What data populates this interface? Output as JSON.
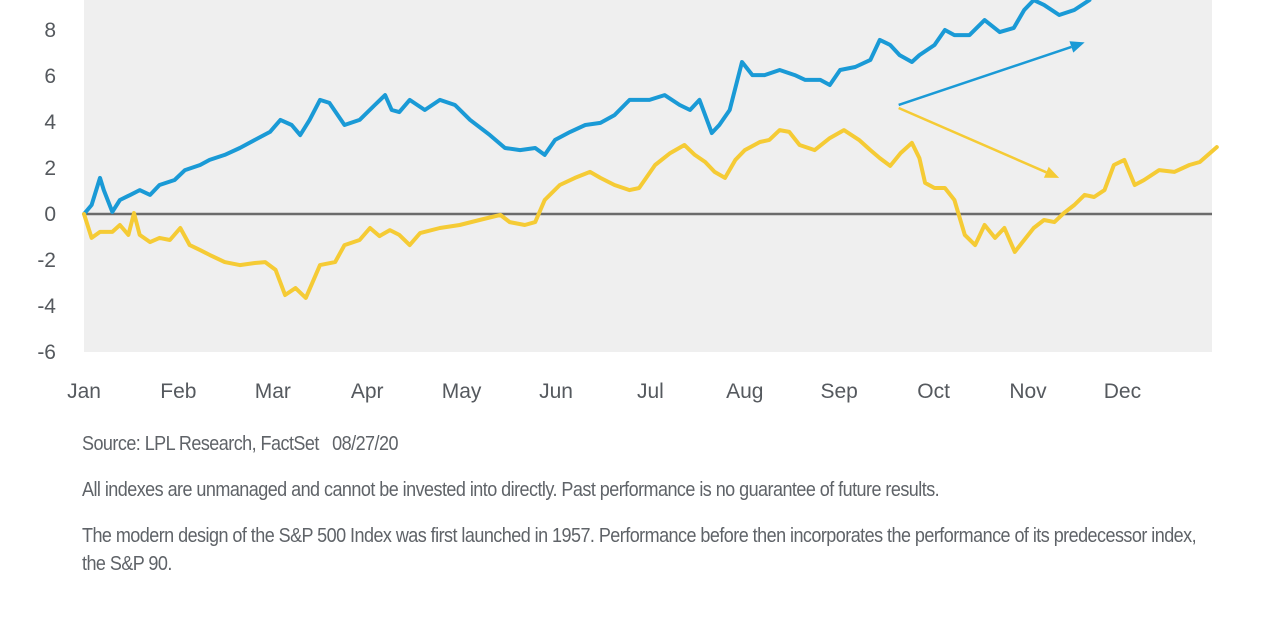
{
  "chart_data": {
    "type": "line",
    "title": "",
    "xlabel": "",
    "ylabel": "",
    "x_tick_labels": [
      "Jan",
      "Feb",
      "Mar",
      "Apr",
      "May",
      "Jun",
      "Jul",
      "Aug",
      "Sep",
      "Oct",
      "Nov",
      "Dec"
    ],
    "y_tick_labels": [
      "8",
      "6",
      "4",
      "2",
      "0",
      "-2",
      "-4",
      "-6"
    ],
    "y_ticks": [
      8,
      6,
      4,
      2,
      0,
      -2,
      -4,
      -6
    ],
    "ylim": [
      -6,
      9.3
    ],
    "xlim": [
      0,
      12
    ],
    "x_units": "months since start of January",
    "grid": false,
    "zero_line": true,
    "legend": "none",
    "colors": {
      "plot_background": "#efefef",
      "zero_line": "#6b6b6b",
      "series_blue": "#1a9ad6",
      "series_yellow": "#f5cb35",
      "tick_text": "#55595e"
    },
    "series": [
      {
        "name": "blue-series",
        "color": "#1a9ad6",
        "x": [
          0,
          0.08,
          0.17,
          0.21,
          0.3,
          0.38,
          0.49,
          0.59,
          0.7,
          0.8,
          0.96,
          1.07,
          1.23,
          1.33,
          1.49,
          1.65,
          1.81,
          1.97,
          2.08,
          2.2,
          2.29,
          2.39,
          2.5,
          2.6,
          2.76,
          2.92,
          3.08,
          3.19,
          3.26,
          3.34,
          3.45,
          3.61,
          3.77,
          3.93,
          4.09,
          4.3,
          4.46,
          4.62,
          4.78,
          4.88,
          4.99,
          5.15,
          5.31,
          5.47,
          5.62,
          5.78,
          5.99,
          6.15,
          6.31,
          6.42,
          6.52,
          6.65,
          6.73,
          6.84,
          6.97,
          7.08,
          7.21,
          7.37,
          7.53,
          7.64,
          7.8,
          7.9,
          8.01,
          8.17,
          8.33,
          8.43,
          8.54,
          8.64,
          8.77,
          8.85,
          9.01,
          9.12,
          9.22,
          9.38,
          9.54,
          9.7,
          9.85,
          9.96,
          10.06,
          10.17,
          10.33,
          10.49,
          10.65
        ],
        "y": [
          0,
          0.39,
          1.57,
          1.04,
          0.09,
          0.61,
          0.83,
          1.04,
          0.83,
          1.26,
          1.48,
          1.91,
          2.13,
          2.35,
          2.57,
          2.87,
          3.22,
          3.57,
          4.09,
          3.87,
          3.43,
          4.09,
          4.96,
          4.83,
          3.87,
          4.09,
          4.74,
          5.17,
          4.52,
          4.43,
          4.96,
          4.52,
          4.96,
          4.74,
          4.09,
          3.43,
          2.87,
          2.78,
          2.87,
          2.57,
          3.22,
          3.57,
          3.87,
          3.96,
          4.3,
          4.96,
          4.96,
          5.17,
          4.74,
          4.52,
          4.96,
          3.52,
          3.87,
          4.52,
          6.61,
          6.04,
          6.04,
          6.26,
          6.04,
          5.83,
          5.83,
          5.61,
          6.26,
          6.39,
          6.7,
          7.57,
          7.35,
          6.91,
          6.61,
          6.91,
          7.35,
          8.0,
          7.78,
          7.78,
          8.43,
          7.91,
          8.09,
          8.87,
          9.3,
          9.09,
          8.65,
          8.87,
          9.3
        ]
      },
      {
        "name": "yellow-series",
        "color": "#f5cb35",
        "x": [
          0,
          0.08,
          0.17,
          0.3,
          0.38,
          0.47,
          0.53,
          0.59,
          0.7,
          0.8,
          0.91,
          1.02,
          1.12,
          1.23,
          1.33,
          1.49,
          1.65,
          1.81,
          1.92,
          2.03,
          2.13,
          2.24,
          2.35,
          2.5,
          2.66,
          2.76,
          2.92,
          3.03,
          3.13,
          3.24,
          3.34,
          3.45,
          3.56,
          3.77,
          3.98,
          4.19,
          4.41,
          4.51,
          4.67,
          4.78,
          4.88,
          5.04,
          5.2,
          5.36,
          5.47,
          5.62,
          5.78,
          5.88,
          6.05,
          6.21,
          6.36,
          6.47,
          6.58,
          6.68,
          6.79,
          6.9,
          7.0,
          7.16,
          7.26,
          7.37,
          7.47,
          7.58,
          7.74,
          7.9,
          8.05,
          8.21,
          8.33,
          8.43,
          8.54,
          8.65,
          8.77,
          8.85,
          8.91,
          9.01,
          9.12,
          9.22,
          9.33,
          9.44,
          9.54,
          9.65,
          9.75,
          9.86,
          9.96,
          10.06,
          10.17,
          10.28,
          10.38,
          10.49,
          10.6,
          10.7,
          10.81,
          10.91,
          11.02,
          11.13,
          11.23,
          11.39,
          11.55,
          11.71,
          11.82,
          12.0
        ],
        "y": [
          0,
          -1.04,
          -0.78,
          -0.78,
          -0.48,
          -0.91,
          0.04,
          -0.91,
          -1.22,
          -1.04,
          -1.13,
          -0.61,
          -1.35,
          -1.57,
          -1.78,
          -2.09,
          -2.22,
          -2.13,
          -2.09,
          -2.43,
          -3.52,
          -3.22,
          -3.65,
          -2.22,
          -2.09,
          -1.35,
          -1.13,
          -0.61,
          -0.96,
          -0.7,
          -0.91,
          -1.35,
          -0.83,
          -0.61,
          -0.48,
          -0.26,
          -0.04,
          -0.35,
          -0.48,
          -0.35,
          0.61,
          1.26,
          1.57,
          1.83,
          1.57,
          1.26,
          1.04,
          1.13,
          2.13,
          2.65,
          3.0,
          2.57,
          2.26,
          1.83,
          1.57,
          2.35,
          2.78,
          3.13,
          3.22,
          3.65,
          3.57,
          3.0,
          2.78,
          3.3,
          3.65,
          3.22,
          2.78,
          2.43,
          2.09,
          2.65,
          3.09,
          2.43,
          1.35,
          1.13,
          1.13,
          0.61,
          -0.91,
          -1.35,
          -0.48,
          -1.04,
          -0.61,
          -1.65,
          -1.13,
          -0.61,
          -0.26,
          -0.35,
          0.04,
          0.39,
          0.83,
          0.74,
          1.04,
          2.13,
          2.35,
          1.26,
          1.48,
          1.91,
          1.83,
          2.13,
          2.26,
          2.91
        ]
      }
    ],
    "annotations": [
      {
        "type": "arrow",
        "color": "#1a9ad6",
        "from": [
          8.63,
          4.74
        ],
        "to": [
          10.6,
          7.46
        ]
      },
      {
        "type": "arrow",
        "color": "#f5cb35",
        "from": [
          8.63,
          4.61
        ],
        "to": [
          10.33,
          1.57
        ]
      }
    ]
  },
  "notes": {
    "source": "Source: LPL Research, FactSet   08/27/20",
    "disclaimer": "All indexes are unmanaged and cannot be invested into directly. Past performance is no guarantee of future results.",
    "sp_history": "The modern design of the S&P 500 Index was first launched in 1957. Performance before then incorporates the performance of its  predecessor index, the S&P 90."
  }
}
